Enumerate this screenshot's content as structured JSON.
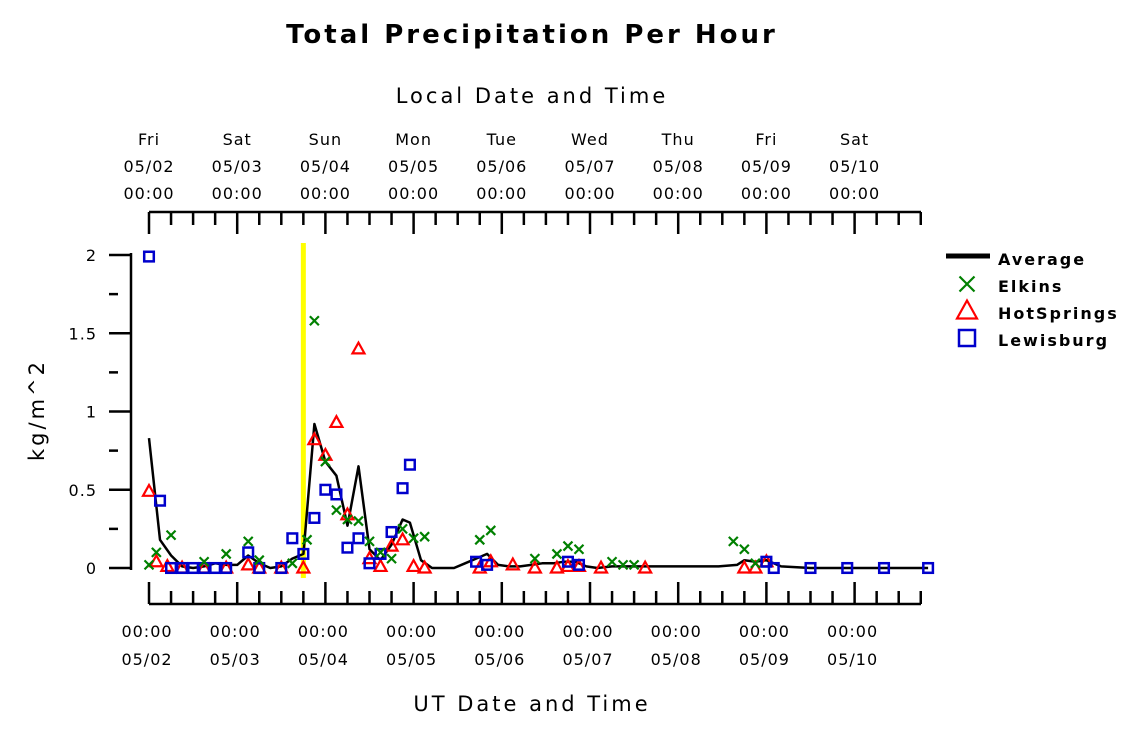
{
  "chart_data": {
    "type": "line",
    "title": "Total Precipitation Per Hour",
    "top_axis_label": "Local Date and Time",
    "xlabel": "UT Date and Time",
    "ylabel": "kg/m^2",
    "ylim": [
      0,
      2
    ],
    "y_ticks": [
      "0",
      "0.5",
      "1",
      "1.5",
      "2"
    ],
    "x_unit": "hours since 05/02 00:00 UT",
    "xlim": [
      0,
      212
    ],
    "top_ticks": [
      {
        "day": "Fri",
        "date": "05/02",
        "time": "00:00"
      },
      {
        "day": "Sat",
        "date": "05/03",
        "time": "00:00"
      },
      {
        "day": "Sun",
        "date": "05/04",
        "time": "00:00"
      },
      {
        "day": "Mon",
        "date": "05/05",
        "time": "00:00"
      },
      {
        "day": "Tue",
        "date": "05/06",
        "time": "00:00"
      },
      {
        "day": "Wed",
        "date": "05/07",
        "time": "00:00"
      },
      {
        "day": "Thu",
        "date": "05/08",
        "time": "00:00"
      },
      {
        "day": "Fri",
        "date": "05/09",
        "time": "00:00"
      },
      {
        "day": "Sat",
        "date": "05/10",
        "time": "00:00"
      }
    ],
    "bottom_ticks": [
      {
        "time": "00:00",
        "date": "05/02"
      },
      {
        "time": "00:00",
        "date": "05/03"
      },
      {
        "time": "00:00",
        "date": "05/04"
      },
      {
        "time": "00:00",
        "date": "05/05"
      },
      {
        "time": "00:00",
        "date": "05/06"
      },
      {
        "time": "00:00",
        "date": "05/07"
      },
      {
        "time": "00:00",
        "date": "05/08"
      },
      {
        "time": "00:00",
        "date": "05/09"
      },
      {
        "time": "00:00",
        "date": "05/10"
      }
    ],
    "marker_line": {
      "x": 42,
      "color": "#ffff00"
    },
    "series": [
      {
        "name": "Average",
        "marker": "line",
        "color": "#000000",
        "points": [
          [
            0,
            0.83
          ],
          [
            3,
            0.18
          ],
          [
            6,
            0.08
          ],
          [
            9,
            0.01
          ],
          [
            12,
            0.0
          ],
          [
            15,
            0.01
          ],
          [
            18,
            0.03
          ],
          [
            21,
            0.02
          ],
          [
            24,
            0.02
          ],
          [
            27,
            0.08
          ],
          [
            30,
            0.03
          ],
          [
            33,
            0.0
          ],
          [
            36,
            0.01
          ],
          [
            39,
            0.06
          ],
          [
            42,
            0.09
          ],
          [
            45,
            0.92
          ],
          [
            48,
            0.68
          ],
          [
            51,
            0.59
          ],
          [
            54,
            0.27
          ],
          [
            57,
            0.65
          ],
          [
            60,
            0.12
          ],
          [
            63,
            0.05
          ],
          [
            66,
            0.15
          ],
          [
            69,
            0.31
          ],
          [
            71,
            0.29
          ],
          [
            74,
            0.05
          ],
          [
            77,
            0.0
          ],
          [
            80,
            0.0
          ],
          [
            83,
            0.0
          ],
          [
            86,
            0.03
          ],
          [
            89,
            0.06
          ],
          [
            92,
            0.09
          ],
          [
            95,
            0.02
          ],
          [
            98,
            0.01
          ],
          [
            101,
            0.01
          ],
          [
            104,
            0.02
          ],
          [
            107,
            0.03
          ],
          [
            110,
            0.03
          ],
          [
            113,
            0.04
          ],
          [
            116,
            0.04
          ],
          [
            119,
            0.01
          ],
          [
            122,
            0.0
          ],
          [
            126,
            0.01
          ],
          [
            130,
            0.01
          ],
          [
            135,
            0.01
          ],
          [
            140,
            0.01
          ],
          [
            145,
            0.01
          ],
          [
            150,
            0.01
          ],
          [
            155,
            0.01
          ],
          [
            160,
            0.02
          ],
          [
            162,
            0.05
          ],
          [
            165,
            0.04
          ],
          [
            168,
            0.05
          ],
          [
            172,
            0.01
          ],
          [
            180,
            0.0
          ],
          [
            190,
            0.0
          ],
          [
            200,
            0.0
          ],
          [
            212,
            0.0
          ]
        ]
      },
      {
        "name": "Elkins",
        "marker": "x",
        "color": "#008000",
        "points": [
          [
            0,
            0.02
          ],
          [
            2,
            0.1
          ],
          [
            6,
            0.21
          ],
          [
            15,
            0.04
          ],
          [
            21,
            0.09
          ],
          [
            27,
            0.17
          ],
          [
            30,
            0.05
          ],
          [
            39,
            0.03
          ],
          [
            43,
            0.18
          ],
          [
            45,
            1.58
          ],
          [
            48,
            0.68
          ],
          [
            51,
            0.37
          ],
          [
            54,
            0.31
          ],
          [
            57,
            0.3
          ],
          [
            60,
            0.17
          ],
          [
            63,
            0.1
          ],
          [
            66,
            0.06
          ],
          [
            69,
            0.25
          ],
          [
            72,
            0.19
          ],
          [
            75,
            0.2
          ],
          [
            90,
            0.18
          ],
          [
            93,
            0.24
          ],
          [
            105,
            0.06
          ],
          [
            111,
            0.09
          ],
          [
            114,
            0.14
          ],
          [
            117,
            0.12
          ],
          [
            126,
            0.04
          ],
          [
            129,
            0.02
          ],
          [
            132,
            0.02
          ],
          [
            159,
            0.17
          ],
          [
            162,
            0.12
          ],
          [
            165,
            0.03
          ]
        ]
      },
      {
        "name": "HotSprings",
        "marker": "triangle",
        "color": "#ff0000",
        "points": [
          [
            0,
            0.49
          ],
          [
            2,
            0.04
          ],
          [
            5,
            0.01
          ],
          [
            9,
            0.0
          ],
          [
            15,
            0.0
          ],
          [
            21,
            0.0
          ],
          [
            27,
            0.02
          ],
          [
            30,
            0.0
          ],
          [
            36,
            0.0
          ],
          [
            42,
            0.0
          ],
          [
            45,
            0.82
          ],
          [
            48,
            0.72
          ],
          [
            51,
            0.93
          ],
          [
            54,
            0.34
          ],
          [
            57,
            1.4
          ],
          [
            60,
            0.06
          ],
          [
            63,
            0.01
          ],
          [
            66,
            0.14
          ],
          [
            69,
            0.18
          ],
          [
            72,
            0.01
          ],
          [
            75,
            0.0
          ],
          [
            90,
            0.0
          ],
          [
            93,
            0.04
          ],
          [
            99,
            0.02
          ],
          [
            105,
            0.0
          ],
          [
            111,
            0.0
          ],
          [
            114,
            0.01
          ],
          [
            117,
            0.01
          ],
          [
            123,
            0.0
          ],
          [
            135,
            0.0
          ],
          [
            162,
            0.0
          ],
          [
            165,
            0.0
          ],
          [
            168,
            0.04
          ]
        ]
      },
      {
        "name": "Lewisburg",
        "marker": "square",
        "color": "#0000cc",
        "points": [
          [
            0,
            1.99
          ],
          [
            3,
            0.43
          ],
          [
            6,
            0.0
          ],
          [
            9,
            0.0
          ],
          [
            12,
            0.0
          ],
          [
            15,
            0.0
          ],
          [
            18,
            0.0
          ],
          [
            21,
            0.0
          ],
          [
            27,
            0.1
          ],
          [
            30,
            0.0
          ],
          [
            36,
            0.0
          ],
          [
            39,
            0.19
          ],
          [
            42,
            0.09
          ],
          [
            45,
            0.32
          ],
          [
            48,
            0.5
          ],
          [
            51,
            0.47
          ],
          [
            54,
            0.13
          ],
          [
            57,
            0.19
          ],
          [
            60,
            0.03
          ],
          [
            63,
            0.09
          ],
          [
            66,
            0.23
          ],
          [
            69,
            0.51
          ],
          [
            71,
            0.66
          ],
          [
            89,
            0.04
          ],
          [
            92,
            0.02
          ],
          [
            114,
            0.04
          ],
          [
            117,
            0.02
          ],
          [
            168,
            0.04
          ],
          [
            170,
            0.0
          ],
          [
            180,
            0.0
          ],
          [
            190,
            0.0
          ],
          [
            200,
            0.0
          ],
          [
            212,
            0.0
          ]
        ]
      }
    ],
    "legend": {
      "placement": "right"
    },
    "grid": false
  }
}
